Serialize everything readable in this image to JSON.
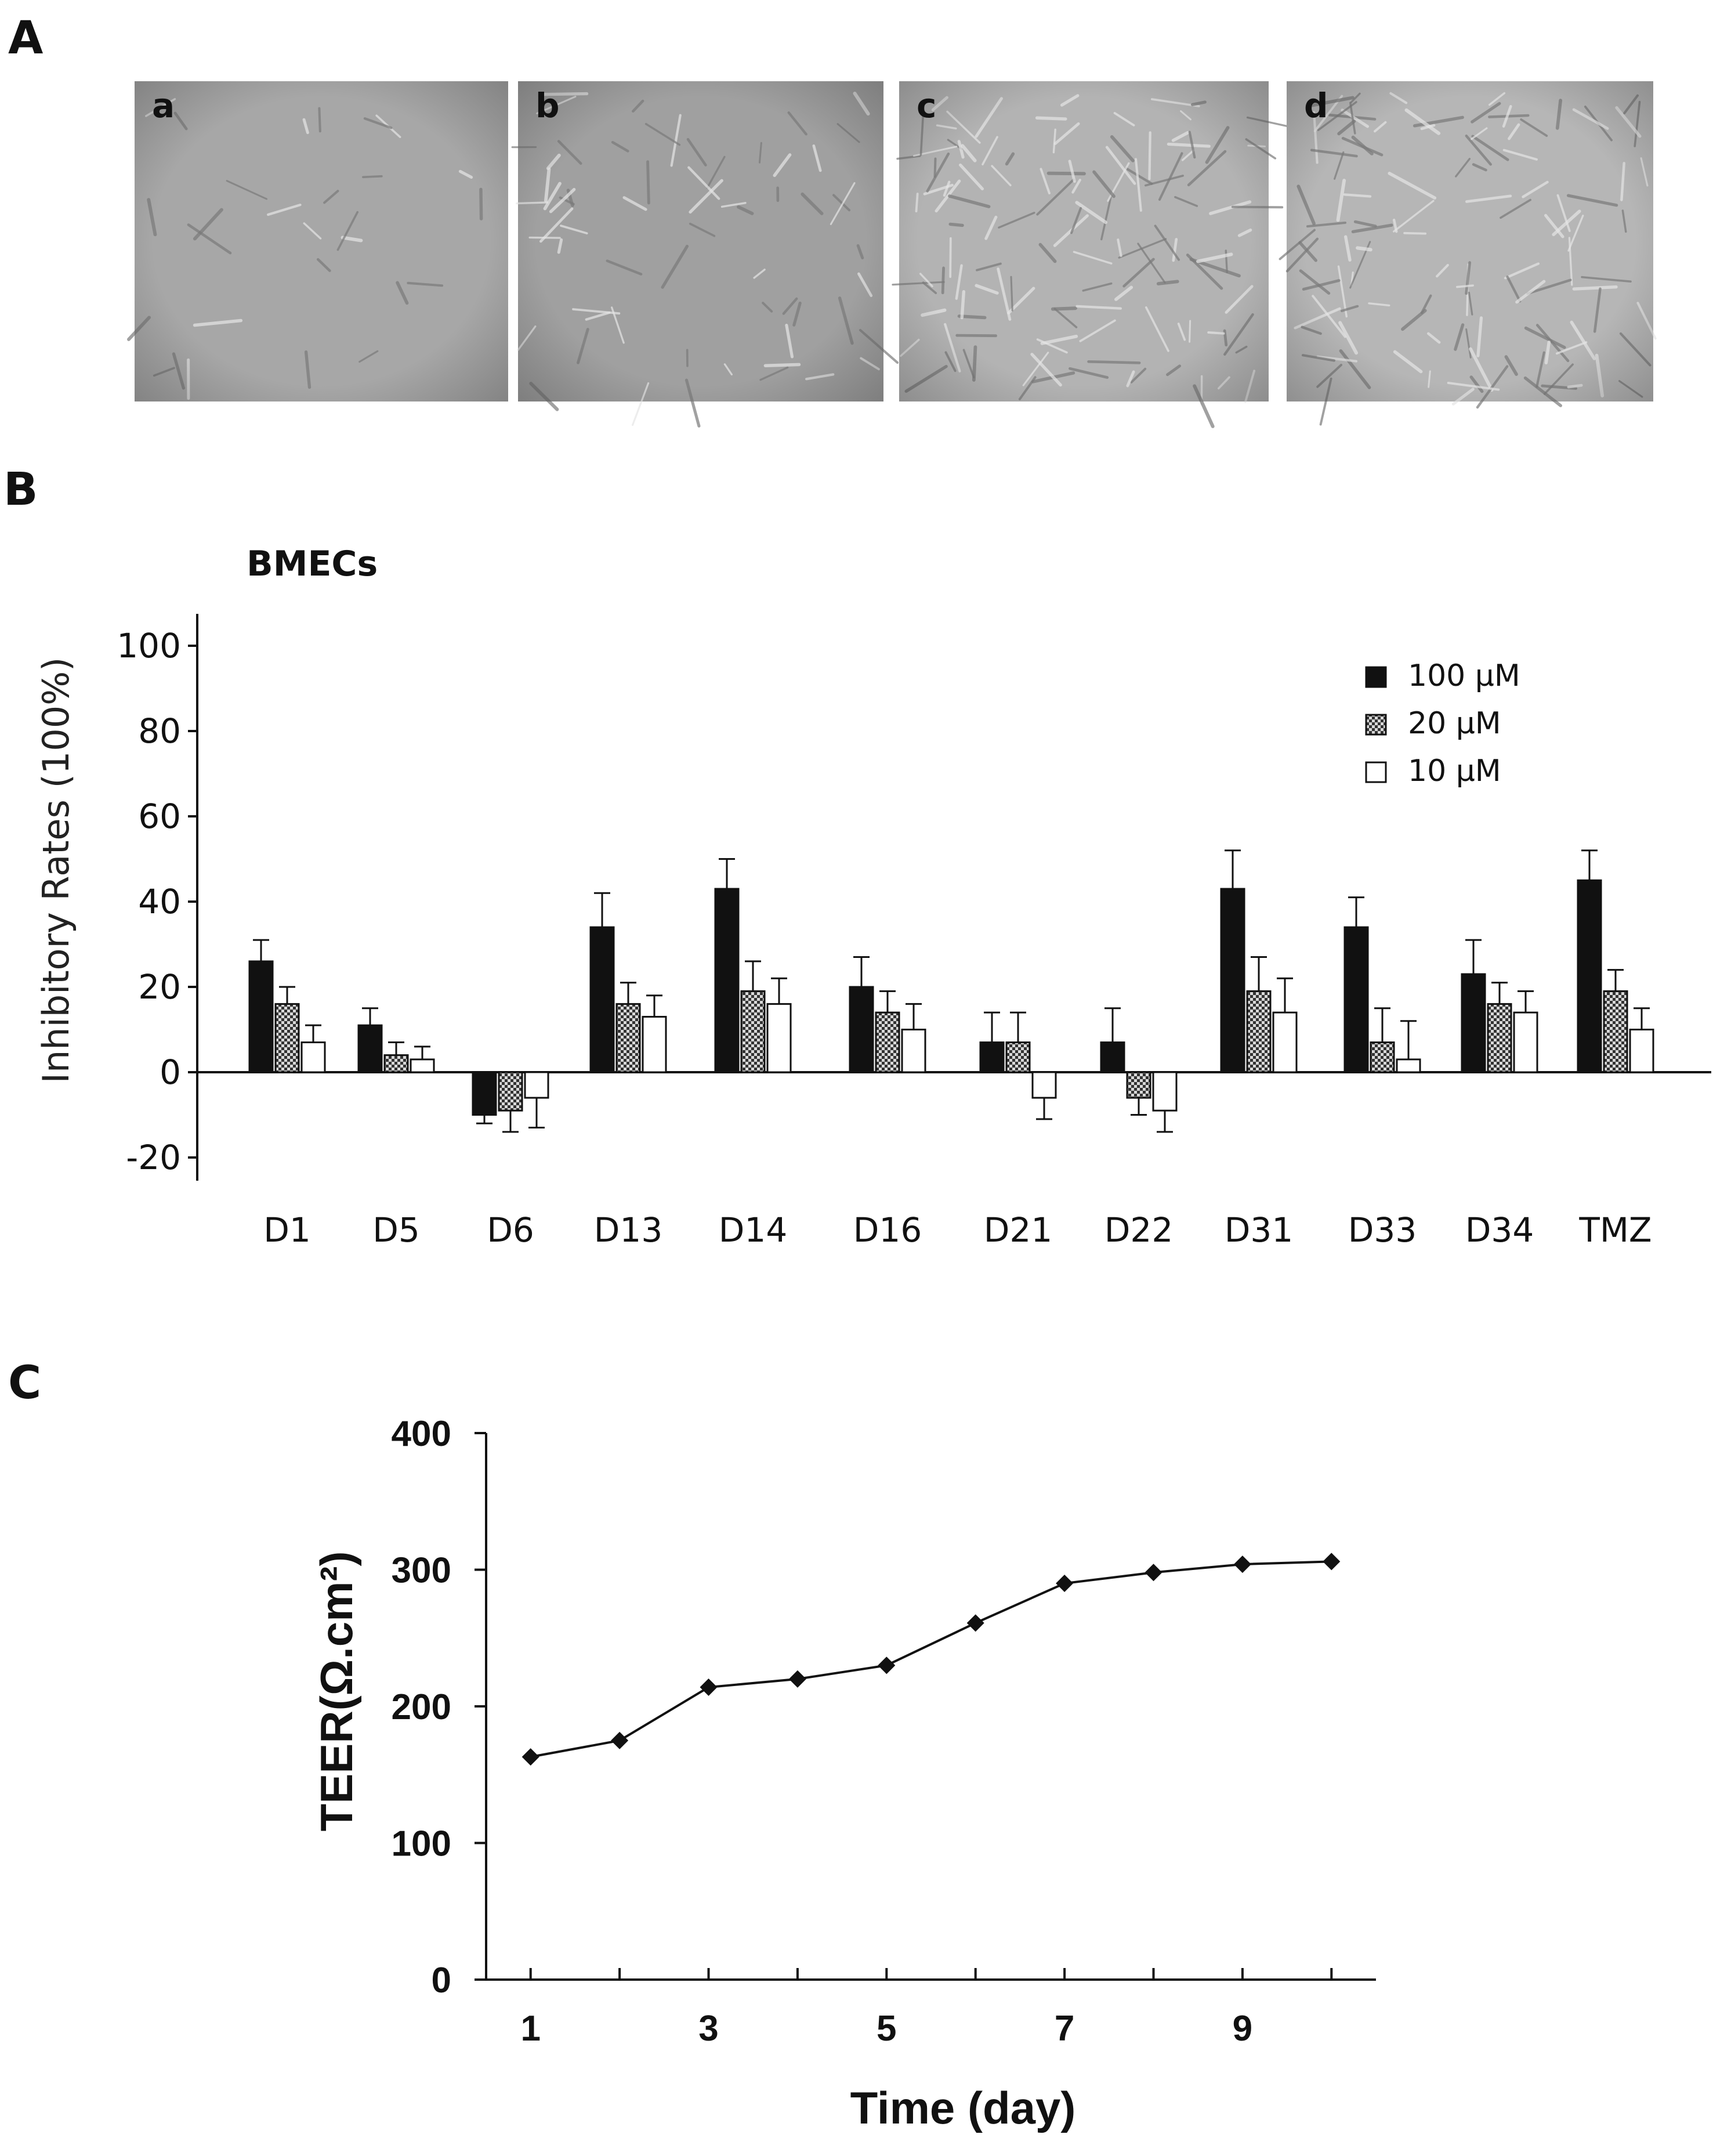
{
  "panel_letters": {
    "a": "A",
    "b": "B",
    "c": "C"
  },
  "micrographs": [
    {
      "label": "a",
      "tone": "#a7a7a7",
      "description_density": 0.2
    },
    {
      "label": "b",
      "tone": "#a0a0a0",
      "description_density": 0.45
    },
    {
      "label": "c",
      "tone": "#b3b3b3",
      "description_density": 0.9
    },
    {
      "label": "d",
      "tone": "#b6b6b6",
      "description_density": 0.85
    }
  ],
  "chart_data": [
    {
      "type": "bar",
      "title": "BMECs",
      "ylabel": "Inhibitory Rates (100%)",
      "xlabel": "",
      "ylim": [
        -20,
        100
      ],
      "yticks": [
        -20,
        0,
        20,
        40,
        60,
        80,
        100
      ],
      "categories": [
        "D1",
        "D5",
        "D6",
        "D13",
        "D14",
        "D16",
        "D21",
        "D22",
        "D31",
        "D33",
        "D34",
        "TMZ"
      ],
      "series": [
        {
          "name": "100 μM",
          "values": [
            26,
            11,
            -10,
            34,
            43,
            20,
            7,
            7,
            43,
            34,
            23,
            45
          ],
          "errors": [
            5,
            4,
            2,
            8,
            7,
            7,
            7,
            8,
            9,
            7,
            8,
            7
          ]
        },
        {
          "name": "20 μM",
          "values": [
            16,
            4,
            -9,
            16,
            19,
            14,
            7,
            -6,
            19,
            7,
            16,
            19
          ],
          "errors": [
            4,
            3,
            5,
            5,
            7,
            5,
            7,
            4,
            8,
            8,
            5,
            5
          ]
        },
        {
          "name": "10 μM",
          "values": [
            7,
            3,
            -6,
            13,
            16,
            10,
            -6,
            -9,
            14,
            3,
            14,
            10
          ],
          "errors": [
            4,
            3,
            7,
            5,
            6,
            6,
            5,
            5,
            8,
            9,
            5,
            5
          ]
        }
      ],
      "legend_position": "top-right",
      "series_colors": [
        "#111111",
        "#8a8a8a",
        "#ffffff"
      ]
    },
    {
      "type": "line",
      "title": "",
      "xlabel": "Time (day)",
      "ylabel": "TEER(Ω.cm²)",
      "ylim": [
        0,
        400
      ],
      "yticks": [
        0,
        100,
        200,
        300,
        400
      ],
      "xlim": [
        0.5,
        10.5
      ],
      "xticks": [
        1,
        3,
        5,
        7,
        9
      ],
      "x": [
        1,
        2,
        3,
        4,
        5,
        6,
        7,
        8,
        9,
        10
      ],
      "y": [
        163,
        175,
        214,
        220,
        230,
        261,
        290,
        298,
        304,
        306
      ],
      "marker": "diamond",
      "color": "#111111"
    }
  ]
}
